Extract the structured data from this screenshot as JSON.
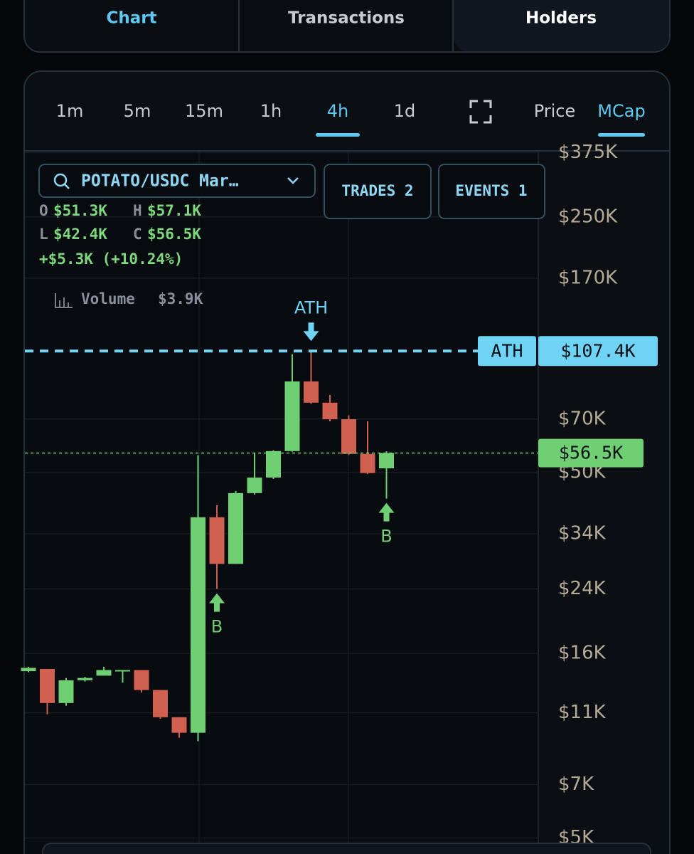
{
  "tabs": [
    "Chart",
    "Transactions",
    "Holders"
  ],
  "toolbar": {
    "timeframes": [
      "1m",
      "5m",
      "15m",
      "1h",
      "4h",
      "1d"
    ],
    "modes": [
      "Price",
      "MCap"
    ]
  },
  "pair": "POTATO/USDC Mar…",
  "buttons": [
    "TRADES 2",
    "EVENTS 1"
  ],
  "ohlc": [
    {
      "key": "O",
      "value": "$51.3K"
    },
    {
      "key": "H",
      "value": "$57.1K"
    },
    {
      "key": "L",
      "value": "$42.4K"
    },
    {
      "key": "C",
      "value": "$56.5K"
    }
  ],
  "change": "+$5.3K (+10.24%)",
  "volume": {
    "label": "Volume",
    "value": "$3.9K"
  },
  "chart_data": {
    "type": "candlestick",
    "log_scale": true,
    "grid": true,
    "colors": {
      "up": "#6fcf73",
      "down": "#d0604f",
      "ath": "#6fd3f5"
    },
    "ylim": [
      4520,
      379000
    ],
    "yticks": [
      {
        "value": 375000,
        "label": "$375K"
      },
      {
        "value": 250000,
        "label": "$250K"
      },
      {
        "value": 170000,
        "label": "$170K"
      },
      {
        "value": 70000,
        "label": "$70K"
      },
      {
        "value": 50000,
        "label": "$50K"
      },
      {
        "value": 34000,
        "label": "$34K"
      },
      {
        "value": 24000,
        "label": "$24K"
      },
      {
        "value": 16000,
        "label": "$16K"
      },
      {
        "value": 11000,
        "label": "$11K"
      },
      {
        "value": 7000,
        "label": "$7K"
      },
      {
        "value": 5000,
        "label": "$5K"
      }
    ],
    "ath": {
      "value": 107400,
      "label": "$107.4K",
      "tag": "ATH"
    },
    "last_price": {
      "value": 56500,
      "label": "$56.5K"
    },
    "annotations": [
      "ATH",
      "B",
      "B"
    ],
    "candles": [
      {
        "o": 14300,
        "h": 14700,
        "l": 14200,
        "c": 14600
      },
      {
        "o": 14500,
        "h": 14500,
        "l": 10900,
        "c": 11700
      },
      {
        "o": 11700,
        "h": 13700,
        "l": 11500,
        "c": 13500
      },
      {
        "o": 13500,
        "h": 13800,
        "l": 13400,
        "c": 13700
      },
      {
        "o": 13900,
        "h": 14700,
        "l": 13900,
        "c": 14400
      },
      {
        "o": 14400,
        "h": 14400,
        "l": 13300,
        "c": 14400
      },
      {
        "o": 14400,
        "h": 14400,
        "l": 12500,
        "c": 12700
      },
      {
        "o": 12700,
        "h": 12700,
        "l": 10600,
        "c": 10700
      },
      {
        "o": 10700,
        "h": 10700,
        "l": 9400,
        "c": 9700
      },
      {
        "o": 9700,
        "h": 55700,
        "l": 9200,
        "c": 37700
      },
      {
        "o": 37700,
        "h": 40700,
        "l": 24000,
        "c": 28100
      },
      {
        "o": 28100,
        "h": 44500,
        "l": 28100,
        "c": 43900
      },
      {
        "o": 43900,
        "h": 56700,
        "l": 43500,
        "c": 48400
      },
      {
        "o": 48400,
        "h": 57500,
        "l": 48000,
        "c": 57200
      },
      {
        "o": 57200,
        "h": 105200,
        "l": 57000,
        "c": 88700
      },
      {
        "o": 88700,
        "h": 107400,
        "l": 77000,
        "c": 77600
      },
      {
        "o": 77600,
        "h": 81500,
        "l": 69000,
        "c": 69900
      },
      {
        "o": 69900,
        "h": 71600,
        "l": 55800,
        "c": 56200
      },
      {
        "o": 56200,
        "h": 69000,
        "l": 49500,
        "c": 49800
      },
      {
        "o": 51300,
        "h": 57100,
        "l": 42400,
        "c": 56500
      }
    ]
  }
}
